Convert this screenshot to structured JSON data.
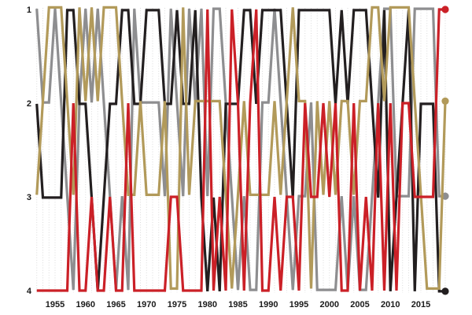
{
  "chart_data": {
    "type": "line",
    "title": "",
    "xlabel": "",
    "ylabel": "",
    "x_start_year": 1952,
    "x_end_year": 2019,
    "x_tick_labels": [
      "1955",
      "1960",
      "1965",
      "1970",
      "1975",
      "1980",
      "1985",
      "1990",
      "1995",
      "2000",
      "2005",
      "2010",
      "2015"
    ],
    "x_tick_years": [
      1955,
      1960,
      1965,
      1970,
      1975,
      1980,
      1985,
      1990,
      1995,
      2000,
      2005,
      2010,
      2015
    ],
    "y_tick_labels": [
      "1",
      "2",
      "3",
      "4"
    ],
    "y_ticks": [
      1,
      2,
      3,
      4
    ],
    "ylim": [
      1,
      4
    ],
    "y_axis_inverted": true,
    "grid": "vertical-dotted-every-year",
    "legend": "none",
    "end_dots": true,
    "colors": {
      "black": "#231f20",
      "gray": "#8e8e90",
      "tan": "#b29a5a",
      "red": "#cb2027",
      "grid": "#d8d8d8",
      "text": "#1a1a1a",
      "background": "#ffffff"
    },
    "series": [
      {
        "name": "gray",
        "color": "#8e8e90",
        "end_rank": 3,
        "values": [
          1,
          2,
          2,
          1,
          2,
          3,
          4,
          2,
          1,
          2,
          1,
          2,
          3,
          4,
          3,
          4,
          1,
          2,
          2,
          2,
          2,
          3,
          1,
          2,
          3,
          1,
          2,
          1,
          3,
          1,
          1,
          2,
          3,
          4,
          3,
          4,
          4,
          2,
          2,
          1,
          2,
          3,
          4,
          3,
          3,
          2,
          4,
          4,
          4,
          4,
          3,
          4,
          3,
          4,
          4,
          3,
          2,
          1,
          1,
          3,
          3,
          3,
          1,
          1,
          1,
          1,
          3,
          3
        ]
      },
      {
        "name": "black",
        "color": "#231f20",
        "end_rank": 4,
        "values": [
          2,
          3,
          3,
          3,
          3,
          1,
          1,
          2,
          2,
          3,
          4,
          3,
          2,
          2,
          1,
          1,
          2,
          2,
          1,
          1,
          1,
          2,
          2,
          1,
          2,
          2,
          1,
          3,
          4,
          3,
          4,
          2,
          2,
          2,
          1,
          1,
          2,
          1,
          1,
          1,
          1,
          2,
          3,
          1,
          1,
          1,
          1,
          1,
          1,
          2,
          1,
          2,
          1,
          1,
          1,
          2,
          3,
          1,
          4,
          3,
          2,
          1,
          4,
          2,
          2,
          2,
          4,
          4
        ]
      },
      {
        "name": "tan",
        "color": "#b29a5a",
        "end_rank": 2,
        "values": [
          3,
          2,
          1,
          1,
          1,
          2,
          3,
          1,
          2,
          1,
          2,
          1,
          1,
          1,
          2,
          3,
          3,
          2,
          3,
          3,
          3,
          2,
          4,
          4,
          1,
          3,
          2,
          2,
          2,
          2,
          2,
          3,
          4,
          3,
          2,
          3,
          3,
          3,
          3,
          2,
          3,
          2,
          1,
          2,
          2,
          4,
          2,
          3,
          2,
          3,
          2,
          2,
          3,
          2,
          2,
          1,
          1,
          2,
          1,
          1,
          1,
          1,
          2,
          3,
          4,
          4,
          4,
          2
        ]
      },
      {
        "name": "red",
        "color": "#cb2027",
        "end_rank": 1,
        "values": [
          4,
          4,
          4,
          4,
          4,
          4,
          2,
          4,
          4,
          3,
          4,
          4,
          3,
          4,
          4,
          2,
          4,
          4,
          4,
          4,
          4,
          4,
          3,
          3,
          4,
          4,
          4,
          4,
          1,
          4,
          3,
          4,
          1,
          2,
          4,
          2,
          1,
          4,
          4,
          3,
          4,
          3,
          3,
          4,
          2,
          3,
          3,
          2,
          3,
          2,
          4,
          4,
          2,
          4,
          3,
          4,
          2,
          4,
          2,
          4,
          2,
          2,
          3,
          3,
          3,
          3,
          1,
          1
        ]
      }
    ]
  }
}
